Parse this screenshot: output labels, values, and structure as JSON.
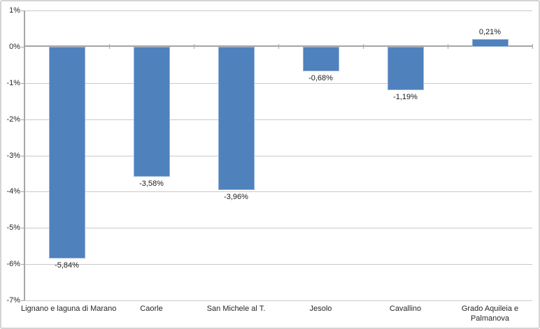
{
  "chart_data": {
    "type": "bar",
    "title": "",
    "xlabel": "",
    "ylabel": "",
    "categories": [
      "Lignano e laguna di Marano",
      "Caorle",
      "San Michele al T.",
      "Jesolo",
      "Cavallino",
      "Grado Aquileia e Palmanova"
    ],
    "category_display_lines": [
      [
        "Lignano e laguna di Marano"
      ],
      [
        "Caorle"
      ],
      [
        "San Michele al T."
      ],
      [
        "Jesolo"
      ],
      [
        "Cavallino"
      ],
      [
        "Grado Aquileia e",
        "Palmanova"
      ]
    ],
    "values": [
      -5.84,
      -3.58,
      -3.96,
      -0.68,
      -1.19,
      0.21
    ],
    "value_labels": [
      "-5,84%",
      "-3,58%",
      "-3,96%",
      "-0,68%",
      "-1,19%",
      "0,21%"
    ],
    "ylim": [
      -7,
      1
    ],
    "ytick_step": 1,
    "ytick_labels": [
      "1%",
      "0%",
      "-1%",
      "-2%",
      "-3%",
      "-4%",
      "-5%",
      "-6%",
      "-7%"
    ],
    "grid": true,
    "legend": false,
    "colors": {
      "bar_fill": "#4F81BD",
      "bar_border": "#95B3D7",
      "gridline": "#C9C9C9",
      "axis_line": "#A6A6A6",
      "text": "#262626",
      "background": "#FFFFFF",
      "frame_border": "#D4D4D4"
    }
  }
}
